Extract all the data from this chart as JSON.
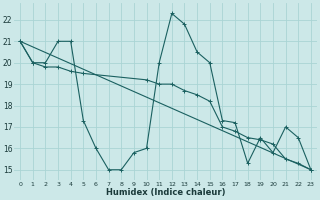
{
  "xlabel": "Humidex (Indice chaleur)",
  "background_color": "#cce8e8",
  "grid_color": "#aad4d4",
  "line_color": "#1a6060",
  "xlim": [
    -0.5,
    23.5
  ],
  "ylim": [
    14.5,
    22.8
  ],
  "yticks": [
    15,
    16,
    17,
    18,
    19,
    20,
    21,
    22
  ],
  "xticks": [
    0,
    1,
    2,
    3,
    4,
    5,
    6,
    7,
    8,
    9,
    10,
    11,
    12,
    13,
    14,
    15,
    16,
    17,
    18,
    19,
    20,
    21,
    22,
    23
  ],
  "line1_x": [
    0,
    1,
    2,
    3,
    4,
    5,
    6,
    7,
    8,
    9,
    10,
    11,
    12,
    13,
    14,
    15,
    16,
    17,
    18,
    19,
    20,
    21,
    22,
    23
  ],
  "line1_y": [
    21,
    20,
    20,
    21,
    21,
    17.3,
    16,
    15,
    15,
    15.8,
    16,
    20,
    22.3,
    21.8,
    20.5,
    20,
    17.3,
    17.2,
    15.3,
    16.5,
    15.8,
    17,
    16.5,
    15
  ],
  "line2_x": [
    0,
    1,
    2,
    3,
    4,
    5,
    10,
    11,
    12,
    13,
    14,
    15,
    16,
    17,
    18,
    19,
    20,
    21,
    22,
    23
  ],
  "line2_y": [
    21,
    20,
    19.8,
    19.8,
    19.6,
    19.5,
    19.2,
    19.0,
    19.0,
    18.7,
    18.5,
    18.2,
    17.0,
    16.8,
    16.5,
    16.4,
    16.2,
    15.5,
    15.3,
    15.0
  ],
  "line3_x": [
    0,
    23
  ],
  "line3_y": [
    21,
    15
  ]
}
